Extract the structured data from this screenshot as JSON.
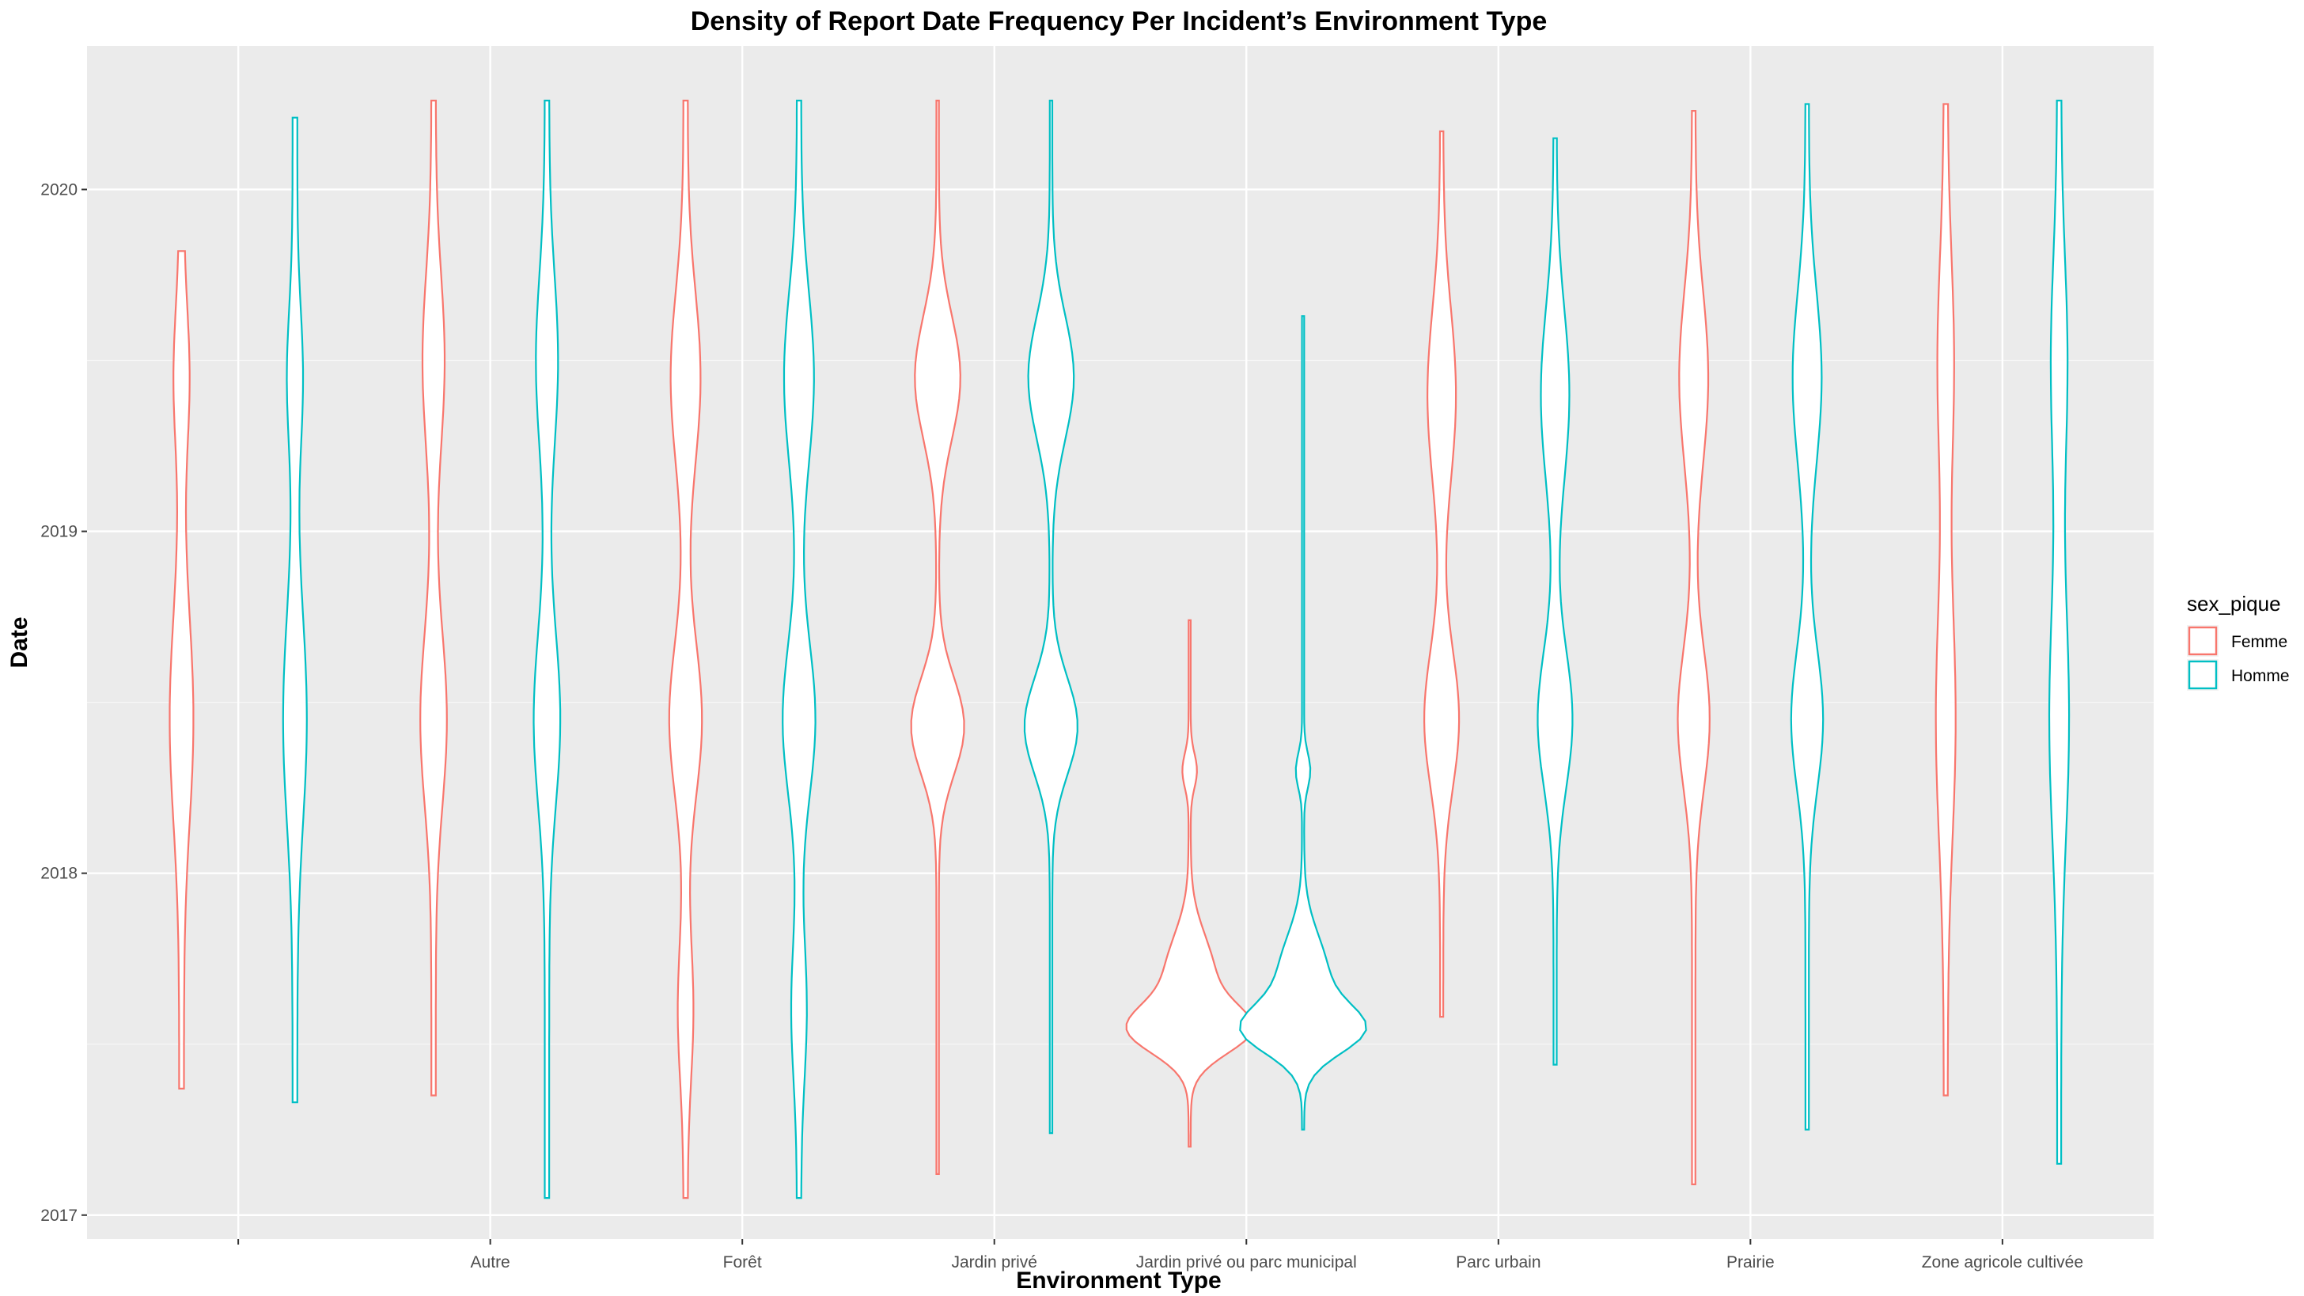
{
  "chart_data": {
    "type": "violin",
    "title": "Density of Report Date Frequency Per Incident’s Environment Type",
    "xlabel": "Environment Type",
    "ylabel": "Date",
    "categories": [
      "",
      "Autre",
      "Forêt",
      "Jardin privé",
      "Jardin privé ou parc municipal",
      "Parc urbain",
      "Prairie",
      "Zone agricole cultivée"
    ],
    "y_ticks": [
      2017,
      2018,
      2019,
      2020
    ],
    "ylim": [
      2016.93,
      2020.42
    ],
    "grid": true,
    "legend": {
      "title": "sex_pique",
      "placement": "right",
      "entries": [
        {
          "name": "Femme",
          "color": "#F8766D"
        },
        {
          "name": "Homme",
          "color": "#00BFC4"
        }
      ]
    },
    "series": [
      {
        "name": "Femme",
        "color": "#F8766D",
        "violins": [
          {
            "category": "",
            "y_min": 2017.37,
            "y_max": 2019.82
          },
          {
            "category": "Autre",
            "y_min": 2017.35,
            "y_max": 2020.26
          },
          {
            "category": "Forêt",
            "y_min": 2017.05,
            "y_max": 2020.26
          },
          {
            "category": "Jardin privé",
            "y_min": 2017.12,
            "y_max": 2020.26
          },
          {
            "category": "Jardin privé ou parc municipal",
            "y_min": 2017.2,
            "y_max": 2018.74
          },
          {
            "category": "Parc urbain",
            "y_min": 2017.58,
            "y_max": 2020.17
          },
          {
            "category": "Prairie",
            "y_min": 2017.09,
            "y_max": 2020.23
          },
          {
            "category": "Zone agricole cultivée",
            "y_min": 2017.35,
            "y_max": 2020.25
          }
        ]
      },
      {
        "name": "Homme",
        "color": "#00BFC4",
        "violins": [
          {
            "category": "",
            "y_min": 2017.33,
            "y_max": 2020.21
          },
          {
            "category": "Autre",
            "y_min": 2017.05,
            "y_max": 2020.26
          },
          {
            "category": "Forêt",
            "y_min": 2017.05,
            "y_max": 2020.26
          },
          {
            "category": "Jardin privé",
            "y_min": 2017.24,
            "y_max": 2020.26
          },
          {
            "category": "Jardin privé ou parc municipal",
            "y_min": 2017.25,
            "y_max": 2019.63
          },
          {
            "category": "Parc urbain",
            "y_min": 2017.44,
            "y_max": 2020.15
          },
          {
            "category": "Prairie",
            "y_min": 2017.25,
            "y_max": 2020.25
          },
          {
            "category": "Zone agricole cultivée",
            "y_min": 2017.15,
            "y_max": 2020.26
          }
        ]
      }
    ]
  }
}
